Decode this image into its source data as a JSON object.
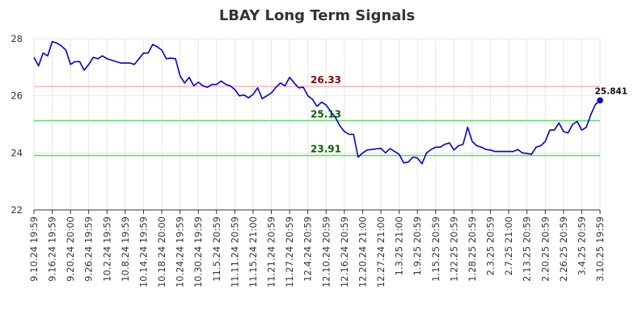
{
  "chart_data": {
    "type": "line",
    "title": "LBAY Long Term Signals",
    "xlabel": "",
    "ylabel": "",
    "ylim": [
      22,
      28
    ],
    "yticks": [
      22,
      24,
      26,
      28
    ],
    "grid": true,
    "x_tick_labels": [
      "9.10.24 19:59",
      "9.16.24 19:59",
      "9.20.24 20:00",
      "9.26.24 19:59",
      "10.2.24 19:59",
      "10.8.24 19:59",
      "10.14.24 19:59",
      "10.18.24 20:00",
      "10.24.24 19:59",
      "10.30.24 19:59",
      "11.5.24 20:59",
      "11.11.24 20:59",
      "11.15.24 21:00",
      "11.21.24 20:59",
      "11.27.24 20:59",
      "12.4.24 20:59",
      "12.10.24 20:59",
      "12.16.24 20:59",
      "12.20.24 21:00",
      "12.27.24 21:00",
      "1.3.25 21:00",
      "1.9.25 20:59",
      "1.15.25 20:59",
      "1.22.25 20:59",
      "1.28.25 20:59",
      "2.3.25 20:59",
      "2.7.25 21:00",
      "2.13.25 20:59",
      "2.20.25 20:59",
      "2.26.25 20:59",
      "3.4.25 20:59",
      "3.10.25 19:59"
    ],
    "series": [
      {
        "color": "#0000cc",
        "values": [
          27.35,
          27.05,
          27.5,
          27.4,
          27.9,
          27.85,
          27.75,
          27.6,
          27.1,
          27.2,
          27.2,
          26.9,
          27.1,
          27.35,
          27.3,
          27.4,
          27.3,
          27.25,
          27.2,
          27.15,
          27.15,
          27.15,
          27.1,
          27.3,
          27.5,
          27.5,
          27.8,
          27.72,
          27.6,
          27.3,
          27.32,
          27.3,
          26.7,
          26.45,
          26.65,
          26.35,
          26.48,
          26.35,
          26.3,
          26.4,
          26.4,
          26.52,
          26.4,
          26.35,
          26.22,
          26.0,
          26.03,
          25.93,
          26.05,
          26.28,
          25.9,
          26.0,
          26.1,
          26.3,
          26.45,
          26.35,
          26.65,
          26.45,
          26.28,
          26.3,
          26.0,
          25.88,
          25.63,
          25.78,
          25.68,
          25.45,
          25.25,
          24.95,
          24.75,
          24.65,
          24.65,
          23.85,
          24.0,
          24.1,
          24.12,
          24.14,
          24.16,
          24.0,
          24.15,
          24.05,
          23.95,
          23.65,
          23.68,
          23.85,
          23.82,
          23.62,
          24.0,
          24.12,
          24.2,
          24.2,
          24.3,
          24.35,
          24.1,
          24.25,
          24.3,
          24.9,
          24.4,
          24.25,
          24.2,
          24.12,
          24.1,
          24.05,
          24.05,
          24.05,
          24.05,
          24.05,
          24.12,
          24.0,
          23.98,
          23.95,
          24.2,
          24.25,
          24.4,
          24.8,
          24.8,
          25.05,
          24.75,
          24.7,
          25.0,
          25.1,
          24.8,
          24.9,
          25.35,
          25.7,
          25.841
        ]
      }
    ],
    "end_label": "25.841",
    "levels": [
      {
        "value": 26.33,
        "label": "26.33",
        "line_color": "#ffb3b3",
        "text_color": "#8b0000"
      },
      {
        "value": 25.13,
        "label": "25.13",
        "line_color": "#66dd66",
        "text_color": "#006400"
      },
      {
        "value": 23.91,
        "label": "23.91",
        "line_color": "#66dd66",
        "text_color": "#006400"
      }
    ],
    "legend": "none"
  }
}
